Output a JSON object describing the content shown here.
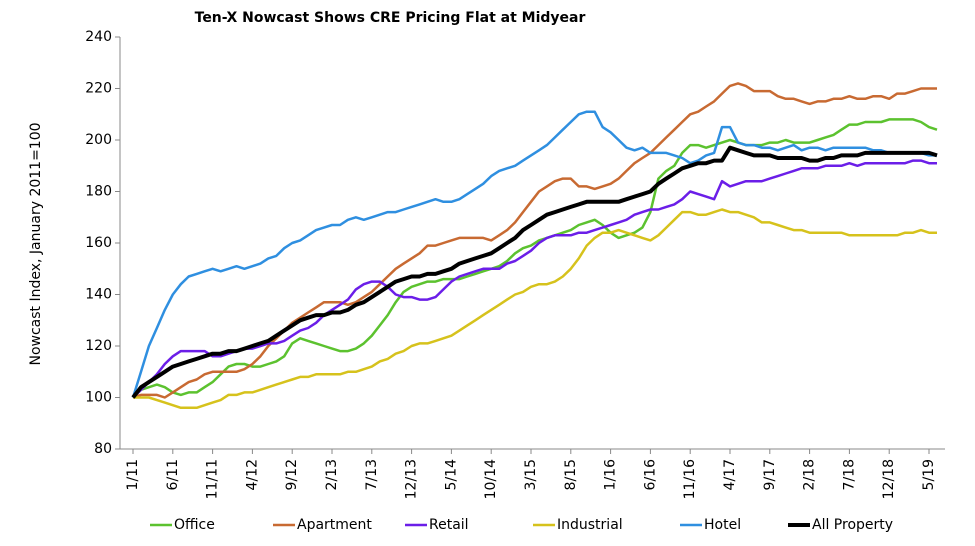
{
  "chart_data": {
    "type": "line",
    "title": "Ten-X Nowcast Shows CRE Pricing Flat at Midyear",
    "y_label": "Nowcast Index, January 2011=100",
    "categories": [
      "1/11",
      null,
      null,
      null,
      null,
      "6/11",
      null,
      null,
      null,
      null,
      "11/11",
      null,
      null,
      null,
      null,
      "4/12",
      null,
      null,
      null,
      null,
      "9/12",
      null,
      null,
      null,
      null,
      "2/13",
      null,
      null,
      null,
      null,
      "7/13",
      null,
      null,
      null,
      null,
      "12/13",
      null,
      null,
      null,
      null,
      "5/14",
      null,
      null,
      null,
      null,
      "10/14",
      null,
      null,
      null,
      null,
      "3/15",
      null,
      null,
      null,
      null,
      "8/15",
      null,
      null,
      null,
      null,
      "1/16",
      null,
      null,
      null,
      null,
      "6/16",
      null,
      null,
      null,
      null,
      "11/16",
      null,
      null,
      null,
      null,
      "4/17",
      null,
      null,
      null,
      null,
      "9/17",
      null,
      null,
      null,
      null,
      "2/18",
      null,
      null,
      null,
      null,
      "7/18",
      null,
      null,
      null,
      null,
      "12/18",
      null,
      null,
      null,
      null,
      "5/19",
      null
    ],
    "ylim": [
      80,
      240
    ],
    "yticks": [
      80,
      100,
      120,
      140,
      160,
      180,
      200,
      220,
      240
    ],
    "legend": "bottom",
    "series": [
      {
        "name": "Office",
        "color": "#5cc22f",
        "values": [
          100,
          103,
          104,
          105,
          104,
          102,
          101,
          102,
          102,
          104,
          106,
          109,
          112,
          113,
          113,
          112,
          112,
          113,
          114,
          116,
          121,
          123,
          122,
          121,
          120,
          119,
          118,
          118,
          119,
          121,
          124,
          128,
          132,
          137,
          141,
          143,
          144,
          145,
          145,
          146,
          146,
          146,
          147,
          148,
          149,
          150,
          151,
          153,
          156,
          158,
          159,
          161,
          162,
          163,
          164,
          165,
          167,
          168,
          169,
          167,
          164,
          162,
          163,
          164,
          166,
          172,
          185,
          188,
          190,
          195,
          198,
          198,
          197,
          198,
          199,
          200,
          199,
          198,
          198,
          198,
          199,
          199,
          200,
          199,
          199,
          199,
          200,
          201,
          202,
          204,
          206,
          206,
          207,
          207,
          207,
          208,
          208,
          208,
          208,
          207,
          205,
          204
        ]
      },
      {
        "name": "Apartment",
        "color": "#c86a32",
        "values": [
          100,
          101,
          101,
          101,
          100,
          102,
          104,
          106,
          107,
          109,
          110,
          110,
          110,
          110,
          111,
          113,
          116,
          120,
          123,
          126,
          129,
          131,
          133,
          135,
          137,
          137,
          137,
          136,
          137,
          139,
          141,
          144,
          147,
          150,
          152,
          154,
          156,
          159,
          159,
          160,
          161,
          162,
          162,
          162,
          162,
          161,
          163,
          165,
          168,
          172,
          176,
          180,
          182,
          184,
          185,
          185,
          182,
          182,
          181,
          182,
          183,
          185,
          188,
          191,
          193,
          195,
          198,
          201,
          204,
          207,
          210,
          211,
          213,
          215,
          218,
          221,
          222,
          221,
          219,
          219,
          219,
          217,
          216,
          216,
          215,
          214,
          215,
          215,
          216,
          216,
          217,
          216,
          216,
          217,
          217,
          216,
          218,
          218,
          219,
          220,
          220,
          220
        ]
      },
      {
        "name": "Retail",
        "color": "#6b1ee8",
        "values": [
          100,
          103,
          106,
          109,
          113,
          116,
          118,
          118,
          118,
          118,
          116,
          116,
          117,
          118,
          119,
          119,
          120,
          121,
          121,
          122,
          124,
          126,
          127,
          129,
          132,
          134,
          136,
          138,
          142,
          144,
          145,
          145,
          143,
          140,
          139,
          139,
          138,
          138,
          139,
          142,
          145,
          147,
          148,
          149,
          150,
          150,
          150,
          152,
          153,
          155,
          157,
          160,
          162,
          163,
          163,
          163,
          164,
          164,
          165,
          166,
          167,
          168,
          169,
          171,
          172,
          173,
          173,
          174,
          175,
          177,
          180,
          179,
          178,
          177,
          184,
          182,
          183,
          184,
          184,
          184,
          185,
          186,
          187,
          188,
          189,
          189,
          189,
          190,
          190,
          190,
          191,
          190,
          191,
          191,
          191,
          191,
          191,
          191,
          192,
          192,
          191,
          191
        ]
      },
      {
        "name": "Industrial",
        "color": "#d6c21c",
        "values": [
          100,
          100,
          100,
          99,
          98,
          97,
          96,
          96,
          96,
          97,
          98,
          99,
          101,
          101,
          102,
          102,
          103,
          104,
          105,
          106,
          107,
          108,
          108,
          109,
          109,
          109,
          109,
          110,
          110,
          111,
          112,
          114,
          115,
          117,
          118,
          120,
          121,
          121,
          122,
          123,
          124,
          126,
          128,
          130,
          132,
          134,
          136,
          138,
          140,
          141,
          143,
          144,
          144,
          145,
          147,
          150,
          154,
          159,
          162,
          164,
          164,
          165,
          164,
          163,
          162,
          161,
          163,
          166,
          169,
          172,
          172,
          171,
          171,
          172,
          173,
          172,
          172,
          171,
          170,
          168,
          168,
          167,
          166,
          165,
          165,
          164,
          164,
          164,
          164,
          164,
          163,
          163,
          163,
          163,
          163,
          163,
          163,
          164,
          164,
          165,
          164,
          164
        ]
      },
      {
        "name": "Hotel",
        "color": "#2f8fe0",
        "values": [
          100,
          110,
          120,
          127,
          134,
          140,
          144,
          147,
          148,
          149,
          150,
          149,
          150,
          151,
          150,
          151,
          152,
          154,
          155,
          158,
          160,
          161,
          163,
          165,
          166,
          167,
          167,
          169,
          170,
          169,
          170,
          171,
          172,
          172,
          173,
          174,
          175,
          176,
          177,
          176,
          176,
          177,
          179,
          181,
          183,
          186,
          188,
          189,
          190,
          192,
          194,
          196,
          198,
          201,
          204,
          207,
          210,
          211,
          211,
          205,
          203,
          200,
          197,
          196,
          197,
          195,
          195,
          195,
          194,
          193,
          191,
          192,
          194,
          195,
          205,
          205,
          199,
          198,
          198,
          197,
          197,
          196,
          197,
          198,
          196,
          197,
          197,
          196,
          197,
          197,
          197,
          197,
          197,
          196,
          196,
          195,
          195,
          195,
          195,
          195,
          194,
          194
        ]
      },
      {
        "name": "All Property",
        "color": "#000000",
        "values": [
          100,
          104,
          106,
          108,
          110,
          112,
          113,
          114,
          115,
          116,
          117,
          117,
          118,
          118,
          119,
          120,
          121,
          122,
          124,
          126,
          128,
          130,
          131,
          132,
          132,
          133,
          133,
          134,
          136,
          137,
          139,
          141,
          143,
          145,
          146,
          147,
          147,
          148,
          148,
          149,
          150,
          152,
          153,
          154,
          155,
          156,
          158,
          160,
          162,
          165,
          167,
          169,
          171,
          172,
          173,
          174,
          175,
          176,
          176,
          176,
          176,
          176,
          177,
          178,
          179,
          180,
          183,
          185,
          187,
          189,
          190,
          191,
          191,
          192,
          192,
          197,
          196,
          195,
          194,
          194,
          194,
          193,
          193,
          193,
          193,
          192,
          192,
          193,
          193,
          194,
          194,
          194,
          195,
          195,
          195,
          195,
          195,
          195,
          195,
          195,
          195,
          194
        ]
      }
    ]
  }
}
